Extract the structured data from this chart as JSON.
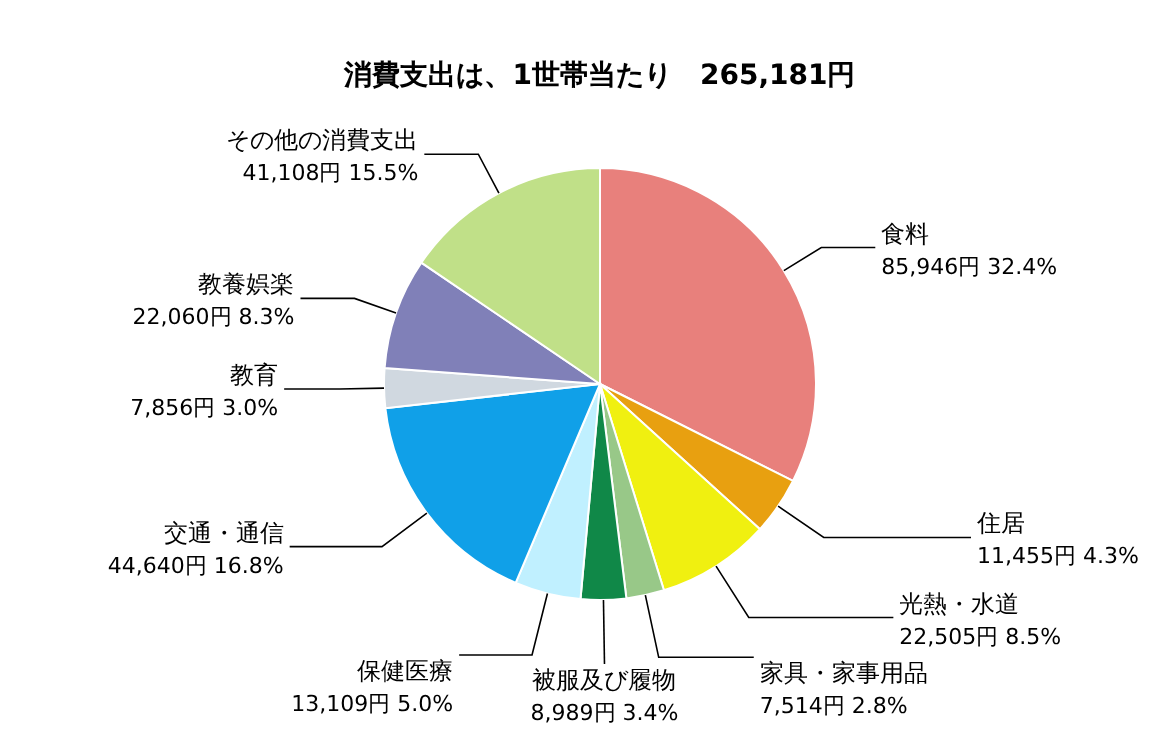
{
  "chart_data": {
    "type": "pie",
    "title": "消費支出は、1世帯当たり　265,181円",
    "categories": [
      "食料",
      "住居",
      "光熱・水道",
      "家具・家事用品",
      "被服及び履物",
      "保健医療",
      "交通・通信",
      "教育",
      "教養娯楽",
      "その他の消費支出"
    ],
    "values": [
      85946,
      11455,
      22505,
      7514,
      8989,
      13109,
      44640,
      7856,
      22060,
      41108
    ],
    "value_labels": [
      "85,946円 32.4%",
      "11,455円 4.3%",
      "22,505円 8.5%",
      "7,514円 2.8%",
      "8,989円 3.4%",
      "13,109円 5.0%",
      "44,640円 16.8%",
      "7,856円 3.0%",
      "22,060円 8.3%",
      "41,108円 15.5%"
    ],
    "colors": [
      "#e8807c",
      "#e8a010",
      "#f0f010",
      "#98c888",
      "#108848",
      "#c0f0ff",
      "#10a0e8",
      "#d0d8e0",
      "#8080b8",
      "#c0e088"
    ]
  }
}
